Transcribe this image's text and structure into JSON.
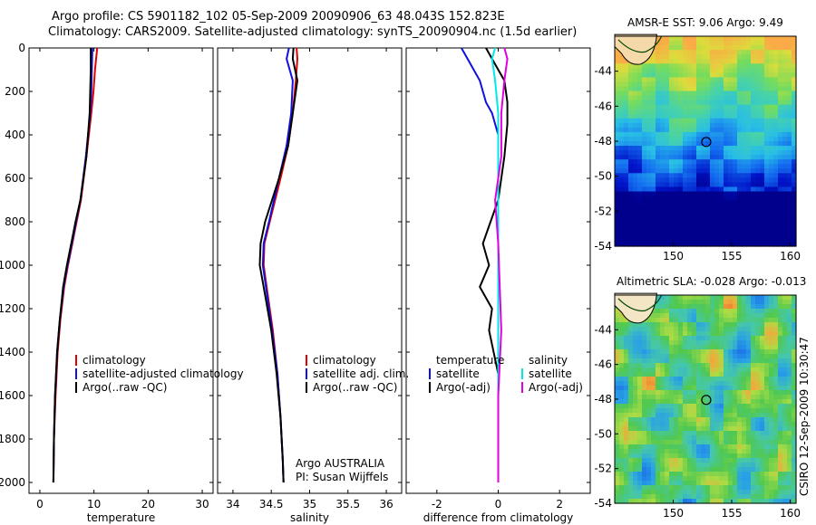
{
  "title_line1": "Argo profile: CS 5901182_102 05-Sep-2009 20090906_63 48.043S 152.823E",
  "title_line2": "Climatology: CARS2009. Satellite-adjusted climatology: synTS_20090904.nc (1.5d earlier)",
  "map1_title": "AMSR-E SST: 9.06 Argo: 9.49",
  "map2_title": "Altimetric SLA: -0.028 Argo: -0.013",
  "footer_vertical": "CSIRO 12-Sep-2009 10:30:47",
  "colors": {
    "climatology": "#e00000",
    "satellite": "#1010e0",
    "argo": "#000000",
    "sat_salt": "#00e8e8",
    "argo_salt": "#e000e0"
  },
  "chart_data": [
    {
      "type": "line",
      "xlabel": "temperature",
      "ylim": [
        2050,
        0
      ],
      "xlim": [
        -2,
        32
      ],
      "xticks": [
        "0",
        "10",
        "20",
        "30"
      ],
      "xtick_values": [
        0,
        10,
        20,
        30
      ],
      "yticks": [
        "0",
        "200",
        "400",
        "600",
        "800",
        "1000",
        "1200",
        "1400",
        "1600",
        "1800",
        "2000"
      ],
      "ytick_values": [
        0,
        200,
        400,
        600,
        800,
        1000,
        1200,
        1400,
        1600,
        1800,
        2000
      ],
      "legend": [
        "climatology",
        "satellite-adjusted climatology",
        "Argo(..raw -QC)"
      ],
      "legend_location": "center-right",
      "series": [
        {
          "name": "climatology",
          "color": "#e00000",
          "x": [
            10.6,
            10.2,
            9.9,
            9.5,
            8.6,
            7.6,
            6.8,
            6.0,
            5.2,
            4.5,
            3.8,
            3.3,
            2.9,
            2.6,
            2.5
          ],
          "y": [
            0,
            100,
            200,
            300,
            500,
            700,
            800,
            900,
            1000,
            1100,
            1250,
            1400,
            1600,
            1800,
            2000
          ]
        },
        {
          "name": "satellite-adjusted climatology",
          "color": "#1010e0",
          "x": [
            9.7,
            9.6,
            9.5,
            9.3,
            8.5,
            7.5,
            6.7,
            5.9,
            5.1,
            4.4,
            3.7,
            3.2,
            2.8,
            2.6,
            2.5
          ],
          "y": [
            0,
            100,
            200,
            300,
            500,
            700,
            800,
            900,
            1000,
            1100,
            1250,
            1400,
            1600,
            1800,
            2000
          ]
        },
        {
          "name": "Argo(..raw -QC)",
          "color": "#000000",
          "x": [
            9.4,
            9.4,
            9.3,
            9.2,
            8.6,
            7.5,
            6.6,
            5.8,
            5.0,
            4.3,
            3.7,
            3.2,
            2.8,
            2.6,
            2.5
          ],
          "y": [
            0,
            100,
            200,
            300,
            500,
            700,
            800,
            900,
            1000,
            1100,
            1250,
            1400,
            1600,
            1800,
            2000
          ]
        }
      ]
    },
    {
      "type": "line",
      "xlabel": "salinity",
      "ylim": [
        2050,
        0
      ],
      "xlim": [
        33.8,
        36.2
      ],
      "xticks": [
        "34",
        "34.5",
        "35",
        "35.5",
        "36"
      ],
      "xtick_values": [
        34,
        34.5,
        35,
        35.5,
        36
      ],
      "legend": [
        "climatology",
        "satellite adj. clim.",
        "Argo(..raw -QC)"
      ],
      "legend_location": "center-right",
      "annotation": [
        "Argo AUSTRALIA",
        "PI: Susan Wijffels"
      ],
      "series": [
        {
          "name": "climatology",
          "color": "#e00000",
          "x": [
            34.83,
            34.84,
            34.82,
            34.78,
            34.72,
            34.62,
            34.48,
            34.41,
            34.4,
            34.44,
            34.52,
            34.58,
            34.62,
            34.65,
            34.66
          ],
          "y": [
            0,
            50,
            150,
            300,
            450,
            600,
            800,
            900,
            1000,
            1100,
            1300,
            1500,
            1700,
            1900,
            2000
          ]
        },
        {
          "name": "satellite adj. clim.",
          "color": "#1010e0",
          "x": [
            34.73,
            34.7,
            34.78,
            34.76,
            34.7,
            34.6,
            34.47,
            34.4,
            34.39,
            34.43,
            34.51,
            34.58,
            34.62,
            34.65,
            34.66
          ],
          "y": [
            0,
            50,
            150,
            300,
            450,
            600,
            800,
            900,
            1000,
            1100,
            1300,
            1500,
            1700,
            1900,
            2000
          ]
        },
        {
          "name": "Argo(..raw -QC)",
          "color": "#000000",
          "x": [
            34.79,
            34.78,
            34.84,
            34.78,
            34.72,
            34.6,
            34.42,
            34.36,
            34.35,
            34.4,
            34.5,
            34.57,
            34.62,
            34.65,
            34.66
          ],
          "y": [
            0,
            50,
            150,
            300,
            450,
            600,
            800,
            900,
            1000,
            1100,
            1300,
            1500,
            1700,
            1900,
            2000
          ]
        }
      ]
    },
    {
      "type": "line",
      "xlabel": "difference from climatology",
      "ylim": [
        2050,
        0
      ],
      "xlim": [
        -3,
        3
      ],
      "xticks": [
        "-2",
        "0",
        "2"
      ],
      "xtick_values": [
        -2,
        0,
        2
      ],
      "legend_headers": [
        "temperature",
        "salinity"
      ],
      "legend": [
        "satellite",
        "Argo(-adj)",
        "satellite",
        "Argo(-adj)"
      ],
      "legend_location": "center-right",
      "series": [
        {
          "name": "satellite",
          "group": "temperature",
          "color": "#1010e0",
          "x": [
            -1.2,
            -1.0,
            -0.6,
            -0.4,
            -0.2,
            0.0,
            0.0,
            0.0,
            0.0,
            0.0
          ],
          "y": [
            0,
            50,
            150,
            250,
            300,
            400,
            800,
            1200,
            1600,
            2000
          ]
        },
        {
          "name": "Argo(-adj)",
          "group": "temperature",
          "color": "#000000",
          "x": [
            -0.4,
            -0.2,
            0.2,
            0.3,
            0.3,
            0.2,
            0.0,
            -0.5,
            -0.3,
            -0.6,
            -0.2,
            -0.3,
            0.0,
            0.0,
            0.0
          ],
          "y": [
            0,
            50,
            150,
            250,
            350,
            500,
            700,
            900,
            1000,
            1100,
            1200,
            1300,
            1500,
            1800,
            2000
          ]
        },
        {
          "name": "satellite",
          "group": "salinity",
          "color": "#00e8e8",
          "x": [
            -0.1,
            -0.2,
            -0.1,
            0.0,
            0.0,
            0.0,
            0.0,
            0.0
          ],
          "y": [
            0,
            50,
            150,
            300,
            600,
            1000,
            1500,
            2000
          ]
        },
        {
          "name": "Argo(-adj)",
          "group": "salinity",
          "color": "#e000e0",
          "x": [
            0.2,
            0.3,
            0.2,
            0.1,
            0.1,
            -0.1,
            0.0,
            0.1,
            0.0,
            0.0
          ],
          "y": [
            0,
            50,
            150,
            300,
            500,
            700,
            900,
            1300,
            1600,
            2000
          ]
        }
      ]
    },
    {
      "type": "heatmap",
      "title": "AMSR-E SST: 9.06 Argo: 9.49",
      "xlim": [
        145,
        160.5
      ],
      "ylim": [
        -54,
        -42
      ],
      "xticks": [
        "150",
        "155",
        "160"
      ],
      "xtick_values": [
        150,
        155,
        160
      ],
      "yticks": [
        "-44",
        "-46",
        "-48",
        "-50",
        "-52",
        "-54"
      ],
      "ytick_values": [
        -44,
        -46,
        -48,
        -50,
        -52,
        -54
      ],
      "argo_marker": [
        152.823,
        -48.043
      ]
    },
    {
      "type": "heatmap",
      "title": "Altimetric SLA: -0.028 Argo: -0.013",
      "xlim": [
        145,
        160.5
      ],
      "ylim": [
        -54,
        -42
      ],
      "xticks": [
        "150",
        "155",
        "160"
      ],
      "xtick_values": [
        150,
        155,
        160
      ],
      "yticks": [
        "-44",
        "-46",
        "-48",
        "-50",
        "-52",
        "-54"
      ],
      "ytick_values": [
        -44,
        -46,
        -48,
        -50,
        -52,
        -54
      ],
      "argo_marker": [
        152.823,
        -48.043
      ]
    }
  ]
}
